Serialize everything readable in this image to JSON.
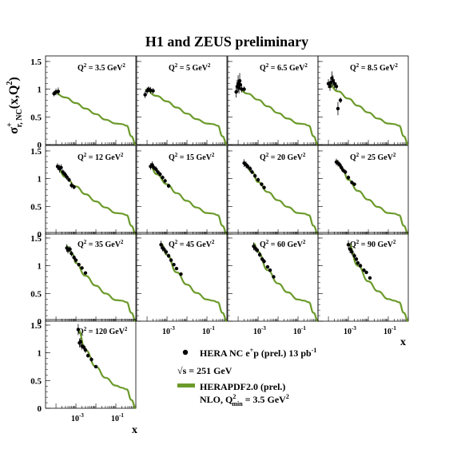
{
  "title": "H1 and ZEUS preliminary",
  "y_axis_label": "σ",
  "y_axis_label_sup": "+",
  "y_axis_label_sub": "r, NC",
  "y_axis_label_tail": "(x,Q",
  "y_axis_label_tail_sup": "2",
  "y_axis_label_close": ")",
  "x_axis_label": "x",
  "y_ticks": [
    "0",
    "0.5",
    "1",
    "1.5"
  ],
  "x_ticks": [
    "10",
    "10"
  ],
  "x_ticks_exp": [
    "-3",
    "-1"
  ],
  "legend": {
    "data_label": "HERA NC e",
    "data_label_sup": "+",
    "data_label_tail": "p (prel.) 13 pb",
    "data_label_tail_sup": "-1",
    "sqrt_label": "√s = 251 GeV",
    "curve_label_1": "HERAPDF2.0 (prel.)",
    "curve_label_2": "NLO, Q",
    "curve_label_2_sup": "2",
    "curve_label_2_sub": "min",
    "curve_label_2_tail": " = 3.5 GeV",
    "curve_label_2_tail_sup": "2"
  },
  "colors": {
    "curve": "#6b9a2a",
    "points": "#000000",
    "frame": "#000000"
  },
  "chart_data": {
    "type": "scatter",
    "x_scale": "log",
    "xlim": [
      3e-05,
      1
    ],
    "ylim": [
      0,
      1.6
    ],
    "series": [
      {
        "name": "HERA NC e+p (prel.) 13 pb-1",
        "kind": "points"
      },
      {
        "name": "HERAPDF2.0 (prel.)",
        "kind": "curve"
      }
    ],
    "panels": [
      {
        "q2_label": "3.5",
        "points": [
          [
            8e-05,
            0.92,
            0.05
          ],
          [
            0.0001,
            0.95,
            0.06
          ],
          [
            0.00013,
            0.96,
            0.07
          ]
        ],
        "curve": [
          [
            8e-05,
            0.94
          ],
          [
            0.0003,
            0.85
          ],
          [
            0.001,
            0.75
          ],
          [
            0.003,
            0.65
          ],
          [
            0.01,
            0.55
          ],
          [
            0.03,
            0.45
          ],
          [
            0.1,
            0.38
          ],
          [
            0.2,
            0.37
          ],
          [
            0.35,
            0.34
          ],
          [
            0.6,
            0.15
          ],
          [
            1,
            0.0
          ]
        ]
      },
      {
        "q2_label": "5",
        "points": [
          [
            8e-05,
            0.9,
            0.06
          ],
          [
            0.0001,
            0.97,
            0.06
          ],
          [
            0.00012,
            1.0,
            0.05
          ],
          [
            0.00015,
            0.98,
            0.06
          ],
          [
            0.0002,
            0.97,
            0.05
          ]
        ],
        "curve": [
          [
            8e-05,
            0.99
          ],
          [
            0.0003,
            0.88
          ],
          [
            0.001,
            0.78
          ],
          [
            0.003,
            0.67
          ],
          [
            0.01,
            0.56
          ],
          [
            0.03,
            0.46
          ],
          [
            0.1,
            0.38
          ],
          [
            0.2,
            0.37
          ],
          [
            0.35,
            0.34
          ],
          [
            0.6,
            0.15
          ],
          [
            1,
            0.0
          ]
        ]
      },
      {
        "q2_label": "6.5",
        "points": [
          [
            8e-05,
            0.95,
            0.1
          ],
          [
            9e-05,
            1.05,
            0.12
          ],
          [
            0.0001,
            1.1,
            0.15
          ],
          [
            0.00011,
            1.02,
            0.1
          ],
          [
            0.00012,
            1.15,
            0.14
          ],
          [
            0.00013,
            1.08,
            0.1
          ],
          [
            0.00015,
            1.0,
            0.06
          ],
          [
            0.0002,
            1.0,
            0.05
          ]
        ],
        "curve": [
          [
            8e-05,
            1.05
          ],
          [
            0.0003,
            0.92
          ],
          [
            0.001,
            0.81
          ],
          [
            0.003,
            0.69
          ],
          [
            0.01,
            0.57
          ],
          [
            0.03,
            0.47
          ],
          [
            0.1,
            0.38
          ],
          [
            0.2,
            0.37
          ],
          [
            0.35,
            0.34
          ],
          [
            0.6,
            0.15
          ],
          [
            1,
            0.0
          ]
        ]
      },
      {
        "q2_label": "8.5",
        "points": [
          [
            0.0001,
            1.1,
            0.08
          ],
          [
            0.00012,
            1.05,
            0.08
          ],
          [
            0.00013,
            1.12,
            0.07
          ],
          [
            0.00015,
            1.2,
            0.12
          ],
          [
            0.00017,
            1.15,
            0.1
          ],
          [
            0.0002,
            1.1,
            0.08
          ],
          [
            0.00025,
            1.05,
            0.07
          ],
          [
            0.0003,
            0.65,
            0.12
          ],
          [
            0.0004,
            0.8,
            0.05
          ]
        ],
        "curve": [
          [
            0.0001,
            1.1
          ],
          [
            0.0003,
            0.96
          ],
          [
            0.001,
            0.83
          ],
          [
            0.003,
            0.7
          ],
          [
            0.01,
            0.58
          ],
          [
            0.03,
            0.47
          ],
          [
            0.1,
            0.38
          ],
          [
            0.2,
            0.37
          ],
          [
            0.35,
            0.34
          ],
          [
            0.6,
            0.15
          ],
          [
            1,
            0.0
          ]
        ]
      },
      {
        "q2_label": "12",
        "points": [
          [
            0.00012,
            1.22,
            0.06
          ],
          [
            0.00015,
            1.18,
            0.07
          ],
          [
            0.00018,
            1.2,
            0.06
          ],
          [
            0.00022,
            1.12,
            0.05
          ],
          [
            0.00028,
            1.08,
            0.05
          ],
          [
            0.00035,
            1.03,
            0.05
          ],
          [
            0.00045,
            0.98,
            0.04
          ],
          [
            0.0006,
            0.88,
            0.05
          ],
          [
            0.0008,
            0.85,
            0.04
          ]
        ],
        "curve": [
          [
            0.00012,
            1.18
          ],
          [
            0.0003,
            1.03
          ],
          [
            0.001,
            0.86
          ],
          [
            0.003,
            0.72
          ],
          [
            0.01,
            0.59
          ],
          [
            0.03,
            0.48
          ],
          [
            0.1,
            0.38
          ],
          [
            0.2,
            0.37
          ],
          [
            0.35,
            0.34
          ],
          [
            0.6,
            0.15
          ],
          [
            1,
            0.0
          ]
        ]
      },
      {
        "q2_label": "15",
        "points": [
          [
            0.00015,
            1.22,
            0.06
          ],
          [
            0.00018,
            1.25,
            0.06
          ],
          [
            0.00022,
            1.2,
            0.05
          ],
          [
            0.00028,
            1.17,
            0.05
          ],
          [
            0.00035,
            1.12,
            0.04
          ],
          [
            0.00045,
            1.08,
            0.04
          ],
          [
            0.0006,
            1.02,
            0.04
          ],
          [
            0.0008,
            0.96,
            0.04
          ],
          [
            0.0012,
            0.87,
            0.04
          ]
        ],
        "curve": [
          [
            0.00015,
            1.22
          ],
          [
            0.0003,
            1.08
          ],
          [
            0.001,
            0.9
          ],
          [
            0.003,
            0.74
          ],
          [
            0.01,
            0.6
          ],
          [
            0.03,
            0.48
          ],
          [
            0.1,
            0.38
          ],
          [
            0.2,
            0.37
          ],
          [
            0.35,
            0.34
          ],
          [
            0.6,
            0.15
          ],
          [
            1,
            0.0
          ]
        ]
      },
      {
        "q2_label": "20",
        "points": [
          [
            0.0002,
            1.28,
            0.07
          ],
          [
            0.00025,
            1.25,
            0.06
          ],
          [
            0.0003,
            1.22,
            0.05
          ],
          [
            0.0004,
            1.18,
            0.05
          ],
          [
            0.0005,
            1.12,
            0.04
          ],
          [
            0.0007,
            1.05,
            0.04
          ],
          [
            0.001,
            0.98,
            0.04
          ],
          [
            0.0015,
            0.9,
            0.03
          ],
          [
            0.002,
            0.84,
            0.03
          ]
        ],
        "curve": [
          [
            0.0002,
            1.28
          ],
          [
            0.0005,
            1.12
          ],
          [
            0.001,
            0.94
          ],
          [
            0.003,
            0.76
          ],
          [
            0.01,
            0.61
          ],
          [
            0.03,
            0.49
          ],
          [
            0.1,
            0.38
          ],
          [
            0.2,
            0.37
          ],
          [
            0.35,
            0.34
          ],
          [
            0.6,
            0.15
          ],
          [
            1,
            0.0
          ]
        ]
      },
      {
        "q2_label": "25",
        "points": [
          [
            0.00025,
            1.3,
            0.06
          ],
          [
            0.0003,
            1.28,
            0.06
          ],
          [
            0.00037,
            1.25,
            0.05
          ],
          [
            0.00045,
            1.2,
            0.05
          ],
          [
            0.00055,
            1.15,
            0.04
          ],
          [
            0.0007,
            1.12,
            0.04
          ],
          [
            0.001,
            1.02,
            0.04
          ],
          [
            0.0015,
            0.93,
            0.03
          ],
          [
            0.002,
            0.9,
            0.03
          ]
        ],
        "curve": [
          [
            0.00025,
            1.32
          ],
          [
            0.0005,
            1.17
          ],
          [
            0.001,
            0.98
          ],
          [
            0.003,
            0.78
          ],
          [
            0.01,
            0.62
          ],
          [
            0.03,
            0.49
          ],
          [
            0.1,
            0.38
          ],
          [
            0.2,
            0.37
          ],
          [
            0.35,
            0.34
          ],
          [
            0.6,
            0.15
          ],
          [
            1,
            0.0
          ]
        ]
      },
      {
        "q2_label": "35",
        "points": [
          [
            0.00035,
            1.32,
            0.07
          ],
          [
            0.0004,
            1.28,
            0.06
          ],
          [
            0.0005,
            1.3,
            0.05
          ],
          [
            0.0006,
            1.22,
            0.05
          ],
          [
            0.0008,
            1.15,
            0.04
          ],
          [
            0.001,
            1.1,
            0.04
          ],
          [
            0.0014,
            1.02,
            0.03
          ],
          [
            0.002,
            0.96,
            0.03
          ],
          [
            0.003,
            0.87,
            0.03
          ]
        ],
        "curve": [
          [
            0.00035,
            1.35
          ],
          [
            0.0007,
            1.2
          ],
          [
            0.001,
            1.05
          ],
          [
            0.003,
            0.82
          ],
          [
            0.01,
            0.64
          ],
          [
            0.03,
            0.5
          ],
          [
            0.1,
            0.38
          ],
          [
            0.2,
            0.37
          ],
          [
            0.35,
            0.34
          ],
          [
            0.6,
            0.15
          ],
          [
            1,
            0.0
          ]
        ]
      },
      {
        "q2_label": "45",
        "points": [
          [
            0.0005,
            1.38,
            0.07
          ],
          [
            0.0006,
            1.32,
            0.06
          ],
          [
            0.0007,
            1.3,
            0.05
          ],
          [
            0.0009,
            1.25,
            0.05
          ],
          [
            0.0012,
            1.18,
            0.04
          ],
          [
            0.0016,
            1.1,
            0.04
          ],
          [
            0.0022,
            1.02,
            0.03
          ],
          [
            0.003,
            0.95,
            0.03
          ],
          [
            0.005,
            0.85,
            0.03
          ]
        ],
        "curve": [
          [
            0.0005,
            1.4
          ],
          [
            0.001,
            1.2
          ],
          [
            0.003,
            0.88
          ],
          [
            0.01,
            0.66
          ],
          [
            0.03,
            0.51
          ],
          [
            0.1,
            0.39
          ],
          [
            0.2,
            0.37
          ],
          [
            0.35,
            0.34
          ],
          [
            0.6,
            0.15
          ],
          [
            1,
            0.0
          ]
        ]
      },
      {
        "q2_label": "60",
        "points": [
          [
            0.0006,
            1.35,
            0.07
          ],
          [
            0.0007,
            1.32,
            0.06
          ],
          [
            0.0009,
            1.28,
            0.05
          ],
          [
            0.0012,
            1.2,
            0.05
          ],
          [
            0.0016,
            1.12,
            0.04
          ],
          [
            0.002,
            1.08,
            0.04
          ],
          [
            0.003,
            0.98,
            0.03
          ],
          [
            0.004,
            0.92,
            0.03
          ],
          [
            0.006,
            0.8,
            0.03
          ]
        ],
        "curve": [
          [
            0.0006,
            1.4
          ],
          [
            0.001,
            1.25
          ],
          [
            0.003,
            0.92
          ],
          [
            0.01,
            0.68
          ],
          [
            0.03,
            0.52
          ],
          [
            0.1,
            0.39
          ],
          [
            0.2,
            0.37
          ],
          [
            0.35,
            0.34
          ],
          [
            0.6,
            0.15
          ],
          [
            1,
            0.0
          ]
        ]
      },
      {
        "q2_label": "90",
        "points": [
          [
            0.001,
            1.38,
            0.08
          ],
          [
            0.0012,
            1.3,
            0.07
          ],
          [
            0.0015,
            1.25,
            0.06
          ],
          [
            0.002,
            1.18,
            0.05
          ],
          [
            0.0025,
            1.12,
            0.04
          ],
          [
            0.003,
            1.05,
            0.04
          ],
          [
            0.004,
            1.0,
            0.04
          ],
          [
            0.006,
            0.92,
            0.03
          ],
          [
            0.008,
            0.88,
            0.03
          ],
          [
            0.012,
            0.78,
            0.03
          ]
        ],
        "curve": [
          [
            0.001,
            1.4
          ],
          [
            0.003,
            1.0
          ],
          [
            0.01,
            0.72
          ],
          [
            0.03,
            0.54
          ],
          [
            0.1,
            0.4
          ],
          [
            0.2,
            0.37
          ],
          [
            0.35,
            0.34
          ],
          [
            0.6,
            0.15
          ],
          [
            1,
            0.0
          ]
        ]
      },
      {
        "q2_label": "120",
        "points": [
          [
            0.0013,
            1.42,
            0.1
          ],
          [
            0.0015,
            1.18,
            0.08
          ],
          [
            0.0017,
            1.2,
            0.07
          ],
          [
            0.002,
            1.12,
            0.06
          ],
          [
            0.0025,
            1.1,
            0.05
          ],
          [
            0.003,
            1.05,
            0.05
          ],
          [
            0.004,
            0.95,
            0.04
          ],
          [
            0.006,
            0.88,
            0.04
          ],
          [
            0.01,
            0.75,
            0.03
          ]
        ],
        "curve": [
          [
            0.0013,
            1.42
          ],
          [
            0.003,
            1.05
          ],
          [
            0.01,
            0.75
          ],
          [
            0.03,
            0.55
          ],
          [
            0.1,
            0.41
          ],
          [
            0.2,
            0.37
          ],
          [
            0.35,
            0.34
          ],
          [
            0.6,
            0.15
          ],
          [
            1,
            0.0
          ]
        ]
      }
    ]
  }
}
